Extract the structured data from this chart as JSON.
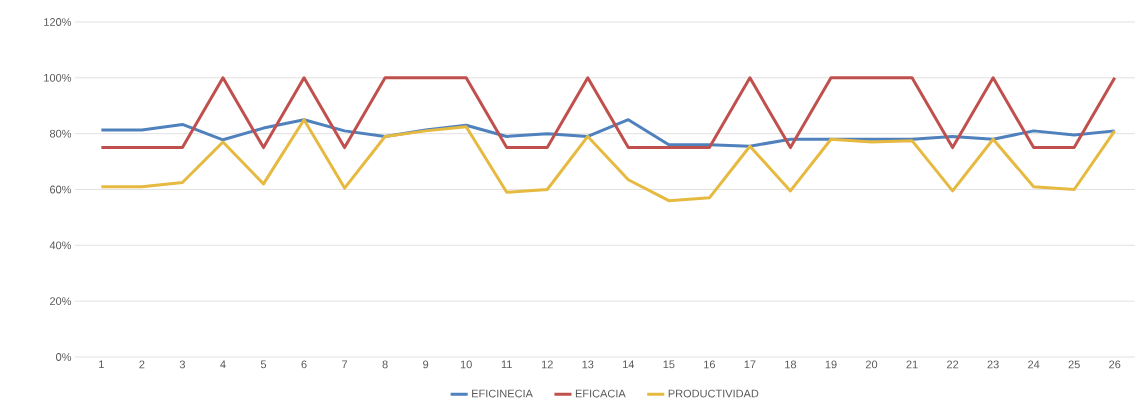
{
  "chart_data": {
    "type": "line",
    "categories": [
      "1",
      "2",
      "3",
      "4",
      "5",
      "6",
      "7",
      "8",
      "9",
      "10",
      "11",
      "12",
      "13",
      "14",
      "15",
      "16",
      "17",
      "18",
      "19",
      "20",
      "21",
      "22",
      "23",
      "24",
      "25",
      "26"
    ],
    "series": [
      {
        "name": "EFICINECIA",
        "color": "#4f81bd",
        "values": [
          81.3,
          81.3,
          83.3,
          77.8,
          82,
          85,
          81,
          79,
          81.3,
          83,
          79,
          80,
          79,
          85,
          76,
          76,
          75.5,
          78,
          78,
          78,
          78,
          79,
          78,
          81,
          79.5,
          81
        ]
      },
      {
        "name": "EFICACIA",
        "color": "#c0504d",
        "values": [
          75,
          75,
          75,
          100,
          75,
          100,
          75,
          100,
          100,
          100,
          75,
          75,
          100,
          75,
          75,
          75,
          100,
          75,
          100,
          100,
          100,
          75,
          100,
          75,
          75,
          100
        ]
      },
      {
        "name": "PRODUCTIVIDAD",
        "color": "#e6b940",
        "values": [
          61,
          61,
          62.5,
          77,
          62,
          85,
          60.5,
          79,
          81,
          82.5,
          59,
          60,
          79,
          63.5,
          56,
          57,
          75.5,
          59.5,
          78,
          77,
          77.5,
          59.5,
          78,
          61,
          60,
          81
        ]
      }
    ],
    "ylim": [
      0,
      120
    ],
    "yticks": [
      {
        "value": 0,
        "label": "0%"
      },
      {
        "value": 20,
        "label": "20%"
      },
      {
        "value": 40,
        "label": "40%"
      },
      {
        "value": 60,
        "label": "60%"
      },
      {
        "value": 80,
        "label": "80%"
      },
      {
        "value": 100,
        "label": "100%"
      },
      {
        "value": 120,
        "label": "120%"
      }
    ],
    "grid": "y",
    "legend": "bottom",
    "marker": "none",
    "line_style": "solid"
  }
}
